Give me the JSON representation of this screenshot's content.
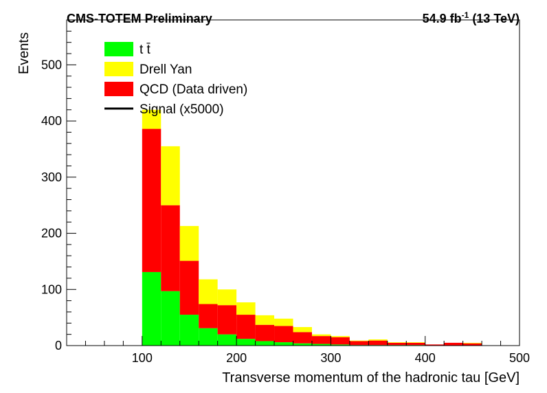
{
  "header": {
    "left": "CMS-TOTEM Preliminary",
    "lumi_value": "54.9 fb",
    "lumi_exp": "-1",
    "energy": "(13 TeV)"
  },
  "chart_data": {
    "type": "bar",
    "stacked": true,
    "xlabel": "Transverse momentum of the hadronic tau [GeV]",
    "ylabel": "Events",
    "xlim": [
      20,
      500
    ],
    "ylim": [
      0,
      580
    ],
    "x_ticks": [
      100,
      200,
      300,
      400,
      500
    ],
    "y_ticks": [
      0,
      100,
      200,
      300,
      400,
      500
    ],
    "bin_edges": [
      100,
      120,
      140,
      160,
      180,
      200,
      220,
      240,
      260,
      280,
      300,
      320,
      340,
      360,
      380,
      400,
      420,
      440,
      460
    ],
    "series": [
      {
        "name": "t t̄",
        "color": "#00ff00",
        "values": [
          131,
          97,
          55,
          31,
          20,
          12,
          8,
          6,
          4,
          3,
          2,
          1,
          1,
          1,
          1,
          0,
          0,
          0
        ]
      },
      {
        "name": "QCD (Data driven)",
        "color": "#ff0000",
        "values": [
          255,
          153,
          96,
          43,
          52,
          43,
          29,
          29,
          20,
          14,
          13,
          7,
          8,
          4,
          4,
          2,
          5,
          4
        ]
      },
      {
        "name": "Drell Yan",
        "color": "#ffff00",
        "values": [
          34,
          105,
          62,
          44,
          28,
          22,
          17,
          13,
          9,
          3,
          2,
          1,
          2,
          1,
          1,
          0,
          0,
          1
        ]
      }
    ],
    "legend": [
      {
        "label": "t t̄",
        "color": "#00ff00",
        "kind": "box"
      },
      {
        "label": "Drell Yan",
        "color": "#ffff00",
        "kind": "box"
      },
      {
        "label": "QCD (Data driven)",
        "color": "#ff0000",
        "kind": "box"
      },
      {
        "label": "Signal (x5000)",
        "color": "#000000",
        "kind": "line"
      }
    ],
    "legend_position": "top-left"
  }
}
